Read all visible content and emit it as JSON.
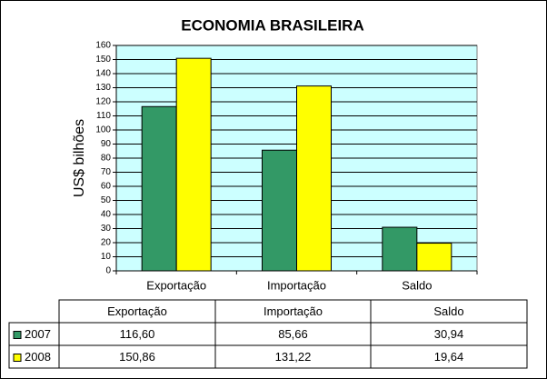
{
  "chart_data": {
    "type": "bar",
    "title": "ECONOMIA BRASILEIRA",
    "y_label": "US$ bilhões",
    "categories": [
      "Exportação",
      "Importação",
      "Saldo"
    ],
    "series": [
      {
        "name": "2007",
        "color": "#339966",
        "values": [
          116.6,
          85.66,
          30.94
        ],
        "value_labels": [
          "116,60",
          "85,66",
          "30,94"
        ]
      },
      {
        "name": "2008",
        "color": "#ffff00",
        "values": [
          150.86,
          131.22,
          19.64
        ],
        "value_labels": [
          "150,86",
          "131,22",
          "19,64"
        ]
      }
    ],
    "ylim": [
      0,
      160
    ],
    "yticks": [
      0,
      10,
      20,
      30,
      40,
      50,
      60,
      70,
      80,
      90,
      100,
      110,
      120,
      130,
      140,
      150,
      160
    ],
    "grid": true,
    "plot_background": "#ccffff"
  }
}
